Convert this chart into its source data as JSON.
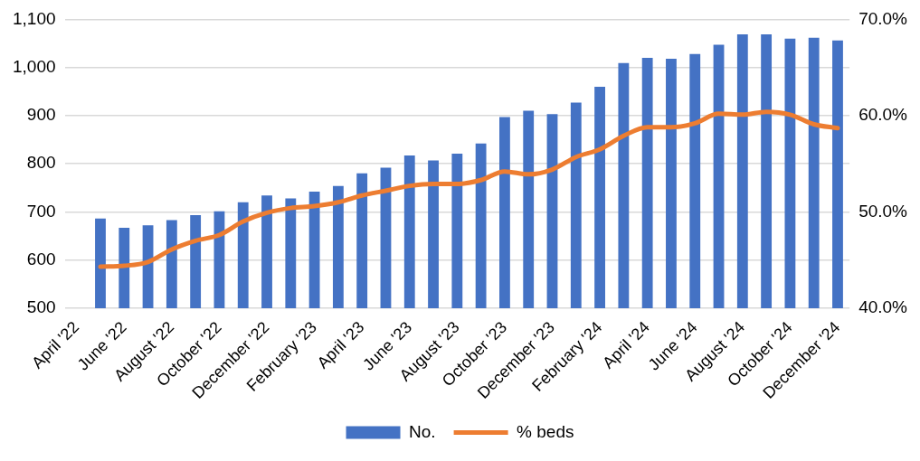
{
  "chart_data": {
    "type": "bar",
    "categories": [
      "April '22",
      null,
      "June '22",
      null,
      "August '22",
      null,
      "October '22",
      null,
      "December '22",
      null,
      "February '23",
      null,
      "April '23",
      null,
      "June '23",
      null,
      "August '23",
      null,
      "October '23",
      null,
      "December '23",
      null,
      "February '24",
      null,
      "April '24",
      null,
      "June '24",
      null,
      "August '24",
      null,
      "October '24",
      null,
      "December '24"
    ],
    "series": [
      {
        "name": "No.",
        "color": "#4472c4",
        "values": [
          null,
          686,
          667,
          672,
          683,
          693,
          701,
          720,
          734,
          728,
          742,
          754,
          780,
          792,
          817,
          807,
          821,
          842,
          897,
          910,
          903,
          927,
          960,
          1009,
          1020,
          1018,
          1028,
          1047,
          1069,
          1069,
          1060,
          1062,
          1056
        ]
      },
      {
        "name": "% beds",
        "type": "line",
        "axis": "y2",
        "color": "#ed7d31",
        "values": [
          null,
          44.3,
          44.4,
          44.8,
          46.1,
          47.0,
          47.6,
          49.0,
          49.9,
          50.4,
          50.6,
          51.0,
          51.7,
          52.2,
          52.7,
          52.9,
          52.9,
          53.3,
          54.2,
          53.9,
          54.4,
          55.7,
          56.5,
          57.9,
          58.8,
          58.8,
          59.2,
          60.2,
          60.1,
          60.4,
          60.1,
          59.1,
          58.7
        ]
      }
    ],
    "ylim": [
      500,
      1100
    ],
    "yticks": [
      500,
      600,
      700,
      800,
      900,
      {
        "value": 1000,
        "label": "1,000"
      },
      {
        "value": 1100,
        "label": "1,100"
      }
    ],
    "y2lim": [
      40,
      70
    ],
    "y2ticks": [
      {
        "value": 40,
        "label": "40.0%"
      },
      {
        "value": 50,
        "label": "50.0%"
      },
      {
        "value": 60,
        "label": "60.0%"
      },
      {
        "value": 70,
        "label": "70.0%"
      }
    ],
    "grid": "y",
    "legend": "bottom"
  }
}
